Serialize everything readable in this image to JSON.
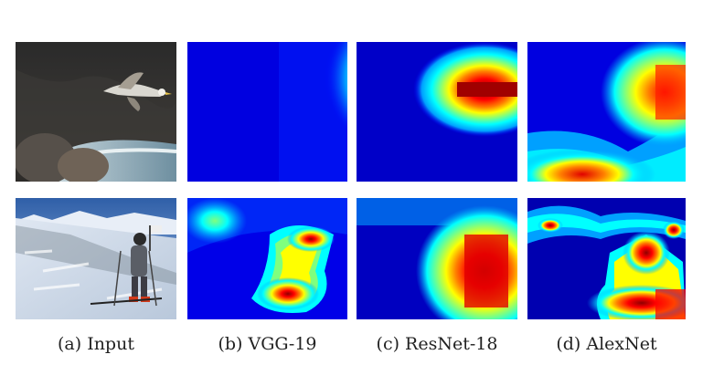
{
  "figure": {
    "captions": [
      "(a) Input",
      "(b) VGG-19",
      "(c) ResNet-18",
      "(d) AlexNet"
    ],
    "rows": [
      {
        "input_subject": "seagull in flight over rocky water"
      },
      {
        "input_subject": "skier on snowy slope"
      }
    ],
    "colormap": [
      "#00008f",
      "#0000ff",
      "#00a0ff",
      "#00ffff",
      "#7fff7f",
      "#ffff00",
      "#ff8000",
      "#ff0000",
      "#8f0000"
    ]
  }
}
